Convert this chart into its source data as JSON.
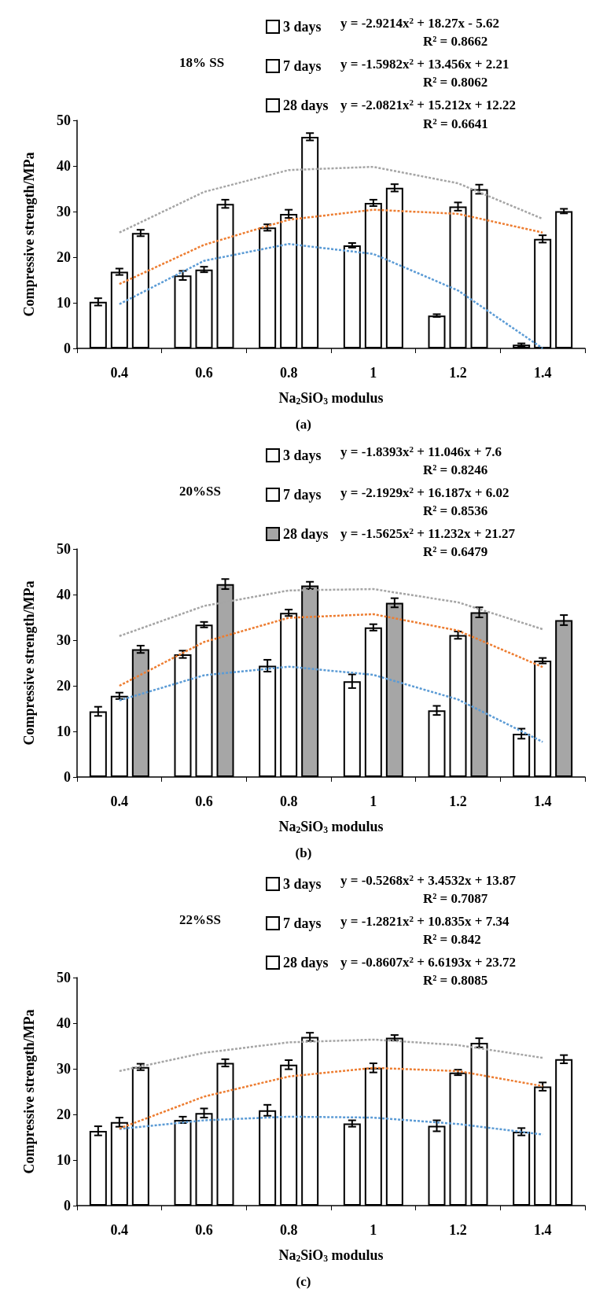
{
  "chart_data": [
    {
      "type": "bar",
      "title": "18% SS",
      "xlabel": "Na$_{2}$SiO$_{3}$ modulus",
      "ylabel": "Compressive strength/MPa",
      "categories": [
        "0.4",
        "0.6",
        "0.8",
        "1",
        "1.2",
        "1.4"
      ],
      "ylim": [
        0,
        50
      ],
      "yticks": [
        0,
        10,
        20,
        30,
        40,
        50
      ],
      "grid": false,
      "legend": "top",
      "marker": "none",
      "series": [
        {
          "name": "3 days",
          "color": "#ffffff",
          "values": [
            10.2,
            16.0,
            26.5,
            22.6,
            7.2,
            0.8
          ],
          "errors": [
            0.8,
            1.0,
            0.7,
            0.5,
            0.3,
            0.3
          ]
        },
        {
          "name": "7 days",
          "color": "#ffffff",
          "values": [
            16.8,
            17.3,
            29.5,
            31.9,
            31.1,
            24.0
          ],
          "errors": [
            0.7,
            0.6,
            0.9,
            0.7,
            0.9,
            0.8
          ]
        },
        {
          "name": "28 days",
          "color": "#ffffff",
          "values": [
            25.3,
            31.7,
            46.4,
            35.2,
            34.9,
            30.1
          ],
          "errors": [
            0.7,
            0.9,
            0.8,
            0.8,
            1.0,
            0.5
          ]
        },
        {
          "type": "line",
          "line_style": "dotted",
          "color": "#5b9bd5",
          "values": [
            9.7,
            19.2,
            22.9,
            20.7,
            12.7,
            0
          ]
        },
        {
          "type": "line",
          "line_style": "dotted",
          "color": "#ed7d31",
          "values": [
            14.1,
            22.7,
            28.2,
            30.4,
            29.5,
            25.4
          ]
        },
        {
          "type": "line",
          "line_style": "dotted",
          "color": "#a5a5a5",
          "values": [
            25.4,
            34.3,
            39.1,
            39.8,
            36.2,
            28.4
          ]
        }
      ],
      "annotations": [
        "y = -2.9214x$^{2}$ + 18.27x - 5.62",
        "R² = 0.8662",
        "y = -1.5982x$^{2}$ + 13.456x + 2.21",
        "R² = 0.8062",
        "y = -2.0821x$^{2}$ + 15.212x + 12.22",
        "R$^{2}$ = 0.6641",
        "(a)"
      ]
    },
    {
      "type": "bar",
      "title": "20%SS",
      "xlabel": "Na$_{2}$SiO$_{3}$ modulus",
      "ylabel": "Compressive strength/MPa",
      "categories": [
        "0.4",
        "0.6",
        "0.8",
        "1",
        "1.2",
        "1.4"
      ],
      "ylim": [
        0,
        50
      ],
      "yticks": [
        0,
        10,
        20,
        30,
        40,
        50
      ],
      "grid": false,
      "legend": "top",
      "marker": "none",
      "series": [
        {
          "name": "3 days",
          "color": "#ffffff",
          "values": [
            14.4,
            26.9,
            24.4,
            21.0,
            14.6,
            9.5
          ],
          "errors": [
            1.0,
            0.8,
            1.3,
            1.5,
            1.0,
            1.1
          ]
        },
        {
          "name": "7 days",
          "color": "#ffffff",
          "values": [
            17.8,
            33.4,
            36.0,
            32.8,
            31.1,
            25.5
          ],
          "errors": [
            0.7,
            0.6,
            0.7,
            0.7,
            0.8,
            0.6
          ]
        },
        {
          "name": "28 days",
          "color": "#a6a6a6",
          "values": [
            28.0,
            42.3,
            42.0,
            38.2,
            36.1,
            34.4
          ],
          "errors": [
            0.8,
            1.1,
            0.8,
            1.0,
            1.1,
            1.1
          ]
        },
        {
          "type": "line",
          "line_style": "dotted",
          "color": "#5b9bd5",
          "values": [
            16.8,
            22.3,
            24.2,
            22.4,
            17.0,
            7.7
          ]
        },
        {
          "type": "line",
          "line_style": "dotted",
          "color": "#ed7d31",
          "values": [
            20.0,
            29.6,
            34.9,
            35.7,
            32.1,
            24.1
          ]
        },
        {
          "type": "line",
          "line_style": "dotted",
          "color": "#a5a5a5",
          "values": [
            30.9,
            37.5,
            40.9,
            41.2,
            38.3,
            32.4
          ]
        }
      ],
      "annotations": [
        "y = -1.8393x$^{2}$ + 11.046x + 7.6",
        "R² = 0.8246",
        "y = -2.1929x$^{2}$ + 16.187x + 6.02",
        "R² = 0.8536",
        "y = -1.5625x$^{2}$ + 11.232x + 21.27",
        "R² = 0.6479",
        "(b)"
      ]
    },
    {
      "type": "bar",
      "title": "22%SS",
      "xlabel": "Na$_{2}$SiO$_{3}$ modulus",
      "ylabel": "Compressive strength/MPa",
      "categories": [
        "0.4",
        "0.6",
        "0.8",
        "1",
        "1.2",
        "1.4"
      ],
      "ylim": [
        0,
        50
      ],
      "yticks": [
        0,
        10,
        20,
        30,
        40,
        50
      ],
      "grid": false,
      "legend": "top",
      "marker": "none",
      "series": [
        {
          "name": "3 days",
          "color": "#ffffff",
          "values": [
            16.4,
            18.8,
            20.9,
            18.0,
            17.5,
            16.2
          ],
          "errors": [
            1.0,
            0.7,
            1.2,
            0.7,
            1.2,
            0.8
          ]
        },
        {
          "name": "7 days",
          "color": "#ffffff",
          "values": [
            18.3,
            20.3,
            30.9,
            30.2,
            29.2,
            26.1
          ],
          "errors": [
            1.0,
            1.0,
            1.0,
            1.0,
            0.6,
            0.9
          ]
        },
        {
          "name": "28 days",
          "color": "#ffffff",
          "values": [
            30.4,
            31.3,
            37.0,
            36.8,
            35.7,
            32.1
          ],
          "errors": [
            0.7,
            0.8,
            0.9,
            0.6,
            1.0,
            0.9
          ]
        },
        {
          "type": "line",
          "line_style": "dotted",
          "color": "#5b9bd5",
          "values": [
            16.8,
            18.7,
            19.5,
            19.3,
            17.9,
            15.6
          ]
        },
        {
          "type": "line",
          "line_style": "dotted",
          "color": "#ed7d31",
          "values": [
            16.9,
            23.9,
            28.3,
            30.2,
            29.5,
            26.2
          ]
        },
        {
          "type": "line",
          "line_style": "dotted",
          "color": "#a5a5a5",
          "values": [
            29.5,
            33.5,
            35.8,
            36.4,
            35.2,
            32.4
          ]
        }
      ],
      "annotations": [
        "y = -0.5268x$^{2}$ + 3.4532x + 13.87",
        "R² = 0.7087",
        "y = -1.2821x$^{2}$ + 10.835x + 7.34",
        "R² = 0.842",
        "y = -0.8607x$^{2}$ + 6.6193x + 23.72",
        "R² = 0.8085",
        "(c)"
      ]
    }
  ]
}
